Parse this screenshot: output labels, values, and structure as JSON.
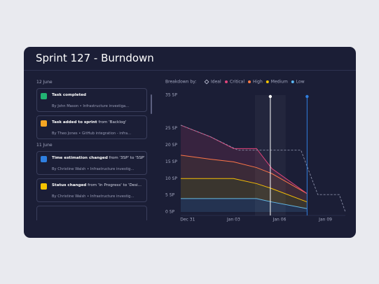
{
  "title": "Sprint 127 - Burndown",
  "feed": [
    {
      "date": "12 June",
      "items": [
        {
          "icon_color": "#22b573",
          "title": "Task completed",
          "subtitle": "By John Mason • Infrastructure investiga..."
        },
        {
          "icon_color": "#f5a623",
          "title": "Task added to sprint",
          "detail": "from 'Backlog'",
          "subtitle": "By Theo Jones • GitHub integration - infra..."
        }
      ]
    },
    {
      "date": "11 June",
      "items": [
        {
          "icon_color": "#2f7fe0",
          "title": "Time estimation changed",
          "detail": "from '3SP' to '5SP'",
          "subtitle": "By Christine Walsh • Infrastructure investig..."
        },
        {
          "icon_color": "#f5c400",
          "title": "Status changed",
          "detail": "from 'In Progress' to 'Desi...",
          "subtitle": "By Christine Walsh • Infrastructure investig..."
        }
      ]
    }
  ],
  "chart_data": {
    "type": "stacked_area",
    "legend_title": "Breakdown by:",
    "ideal": {
      "name": "Ideal",
      "color": "#8a8fa8",
      "x": [
        -0.45,
        1.5,
        3.3,
        6.5,
        7.4,
        8.5,
        9.9,
        10.3
      ],
      "values": [
        26,
        22.5,
        18.5,
        18.5,
        18.5,
        5.2,
        5.2,
        0
      ]
    },
    "x": [
      -0.45,
      1.5,
      3,
      4.5,
      5.5,
      7.8
    ],
    "series": [
      {
        "name": "Critical",
        "color": "#e0457b",
        "values": [
          9,
          6.7,
          4,
          5.7,
          1.5,
          0
        ]
      },
      {
        "name": "High",
        "color": "#ff7a45",
        "values": [
          7,
          5.8,
          5,
          4.8,
          4.5,
          2.5
        ]
      },
      {
        "name": "Medium",
        "color": "#f5c400",
        "values": [
          6,
          6,
          6,
          4.5,
          4,
          2
        ]
      },
      {
        "name": "Low",
        "color": "#5bb8f5",
        "values": [
          4,
          4,
          4,
          4,
          3,
          1
        ]
      }
    ],
    "markers": [
      {
        "x": 5.4,
        "color": "#ffffff"
      },
      {
        "x": 7.8,
        "color": "#2f7fe0"
      }
    ],
    "xlim": [
      -0.45,
      10.3
    ],
    "xticks": [
      {
        "value": 0,
        "label": "Dec 31"
      },
      {
        "value": 3,
        "label": "Jan 03"
      },
      {
        "value": 6,
        "label": "Jan 06"
      },
      {
        "value": 9,
        "label": "Jan 09"
      }
    ],
    "ylim": [
      0,
      35
    ],
    "yticks": [
      {
        "value": 0,
        "label": "0 SP"
      },
      {
        "value": 5,
        "label": "5 SP"
      },
      {
        "value": 10,
        "label": "10 SP"
      },
      {
        "value": 15,
        "label": "15 SP"
      },
      {
        "value": 20,
        "label": "20 SP"
      },
      {
        "value": 25,
        "label": "25 SP"
      },
      {
        "value": 35,
        "label": "35 SP"
      }
    ],
    "grid": false
  }
}
